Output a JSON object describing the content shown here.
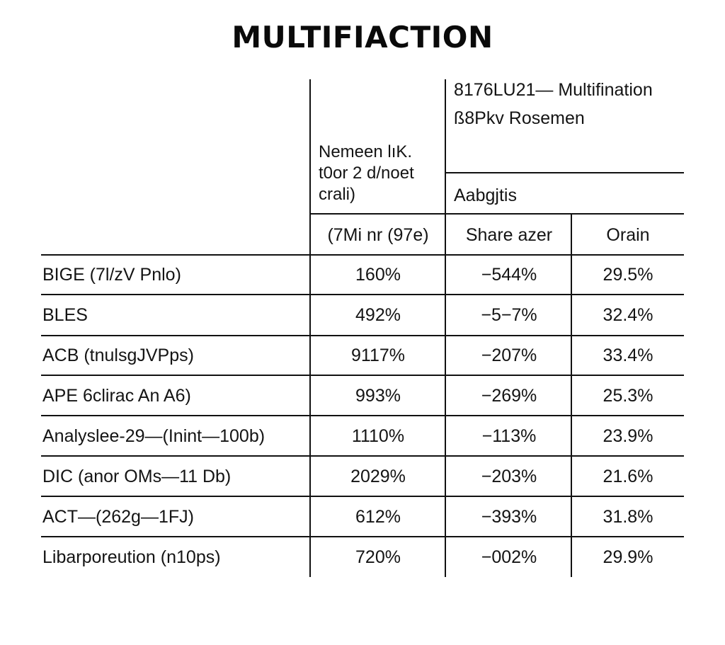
{
  "title": "MULTIFIACTION",
  "header": {
    "group_title_line1": "8176LU21— Multifination",
    "group_title_line2": "ß8Pkv Rosemen",
    "col1_header_lines": [
      "Nemeen lıK.",
      "t0or 2 d/noet",
      "crali)"
    ],
    "subgroup_label": "Aabgjtis",
    "col1_sub": "(7Mi nr (97e)",
    "col2_sub": "Share azer",
    "col3_sub": "Orain"
  },
  "rows": [
    {
      "label": "BIGE (7l/zV Pnlo)",
      "c1": "160%",
      "c2": "−544%",
      "c3": "29.5%"
    },
    {
      "label": "BLES",
      "c1": "492%",
      "c2": "−5−7%",
      "c3": "32.4%"
    },
    {
      "label": "ACB (tnulsgJVPps)",
      "c1": "9117%",
      "c2": "−207%",
      "c3": "33.4%"
    },
    {
      "label": "APE 6clirac An A6)",
      "c1": "993%",
      "c2": "−269%",
      "c3": "25.3%"
    },
    {
      "label": "Analyslee-29—(Inint—100b)",
      "c1": "1110%",
      "c2": "−113%",
      "c3": "23.9%"
    },
    {
      "label": "DIC (anor OMs—11 Db)",
      "c1": "2029%",
      "c2": "−203%",
      "c3": "21.6%"
    },
    {
      "label": "ACT—(262g—1FJ)",
      "c1": "612%",
      "c2": "−393%",
      "c3": "31.8%"
    },
    {
      "label": "Libarporeution (n10ps)",
      "c1": "720%",
      "c2": "−002%",
      "c3": "29.9%"
    }
  ]
}
